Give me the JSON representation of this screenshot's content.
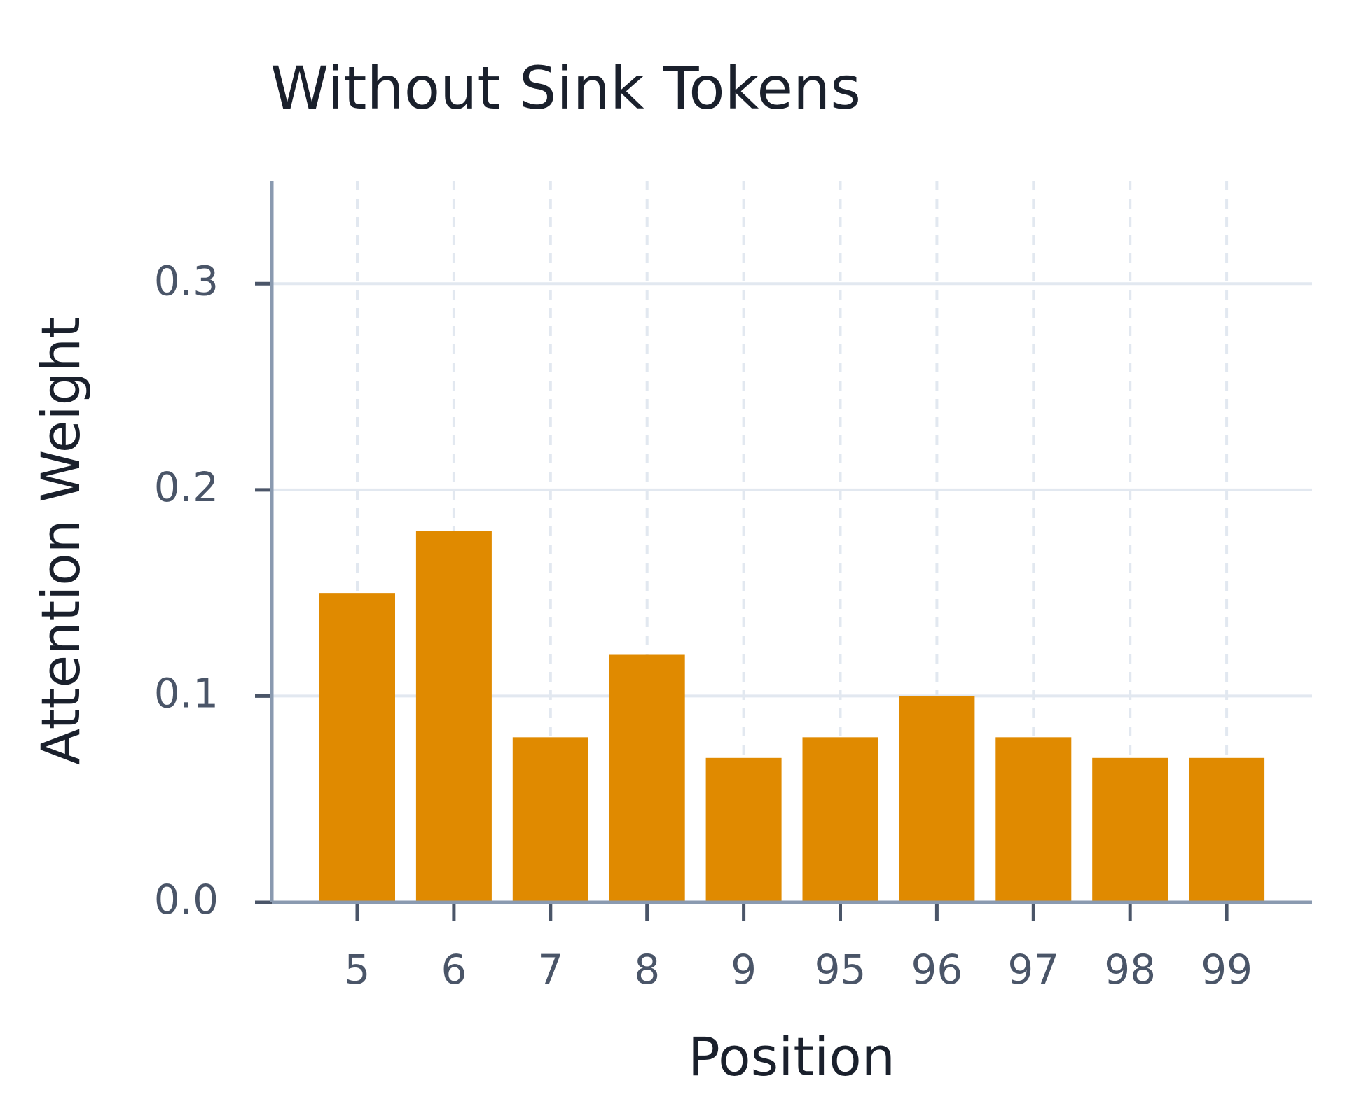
{
  "chart_data": {
    "type": "bar",
    "title": "Without Sink Tokens",
    "x_label": "Position",
    "y_label": "Attention Weight",
    "categories": [
      "5",
      "6",
      "7",
      "8",
      "9",
      "95",
      "96",
      "97",
      "98",
      "99"
    ],
    "values": [
      0.15,
      0.18,
      0.08,
      0.12,
      0.07,
      0.08,
      0.1,
      0.08,
      0.07,
      0.07
    ],
    "color": "#e08a00",
    "ylim": [
      0,
      0.35
    ],
    "yticks": [
      {
        "value": 0,
        "label": "0.0"
      },
      0.1,
      0.2,
      0.3
    ],
    "grid": true
  }
}
